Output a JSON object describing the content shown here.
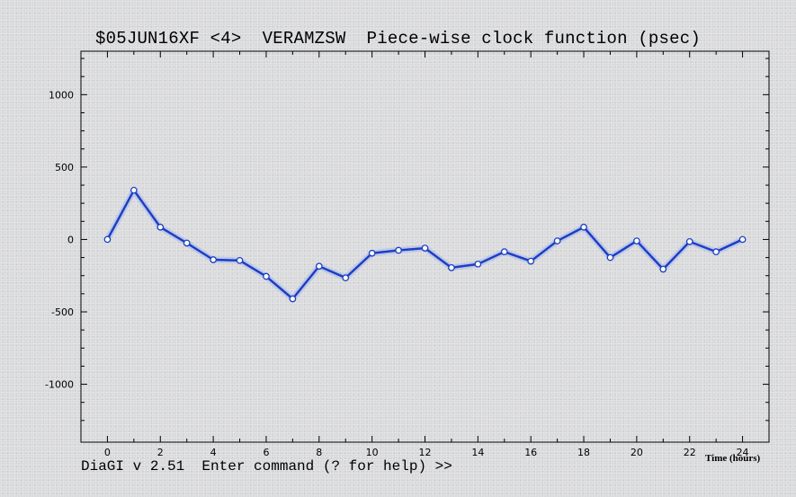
{
  "status_line": "DiaGI v 2.51  Enter command (? for help) >>",
  "chart_data": {
    "type": "line",
    "title": "$05JUN16XF <4>  VERAMZSW  Piece-wise clock function (psec)",
    "xlabel": "Time (hours)",
    "ylabel": "",
    "xlim": [
      -1,
      25
    ],
    "ylim": [
      -1400,
      1300
    ],
    "x_ticks": [
      0,
      2,
      4,
      6,
      8,
      10,
      12,
      14,
      16,
      18,
      20,
      22,
      24
    ],
    "y_ticks": [
      -1000,
      -500,
      0,
      500,
      1000
    ],
    "series": [
      {
        "color": "#1c3fc4",
        "x": [
          0,
          1,
          2,
          3,
          4,
          5,
          6,
          7,
          8,
          9,
          10,
          11,
          12,
          13,
          14,
          15,
          16,
          17,
          18,
          19,
          20,
          21,
          22,
          23,
          24
        ],
        "y": [
          0,
          340,
          85,
          -25,
          -140,
          -145,
          -255,
          -410,
          -185,
          -265,
          -95,
          -75,
          -60,
          -195,
          -170,
          -85,
          -150,
          -10,
          85,
          -125,
          -10,
          -205,
          -15,
          -85,
          0
        ]
      }
    ]
  }
}
